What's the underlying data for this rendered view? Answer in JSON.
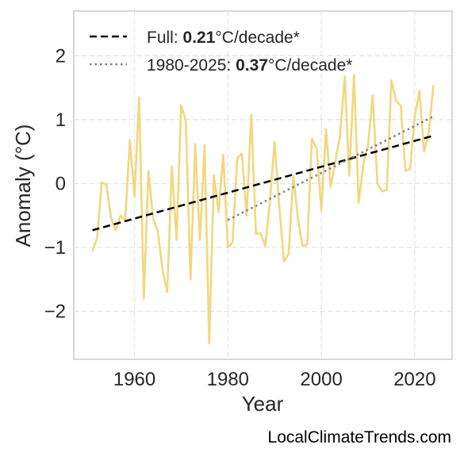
{
  "chart_data": {
    "type": "line",
    "xlabel": "Year",
    "ylabel": "Anomaly (°C)",
    "xlim": [
      1947,
      2028
    ],
    "ylim": [
      -2.75,
      2.7
    ],
    "xticks": [
      1960,
      1980,
      2000,
      2020
    ],
    "yticks": [
      -2,
      -1,
      0,
      1,
      2
    ],
    "ytick_labels": [
      "−2",
      "−1",
      "0",
      "1",
      "2"
    ],
    "grid": true,
    "legend_position": "top-left",
    "series": [
      {
        "x": [
          1951,
          1952,
          1953,
          1954,
          1955,
          1956,
          1957,
          1958,
          1959,
          1960,
          1961,
          1962,
          1963,
          1964,
          1965,
          1966,
          1967,
          1968,
          1969,
          1970,
          1971,
          1972,
          1973,
          1974,
          1975,
          1976,
          1977,
          1978,
          1979,
          1980,
          1981,
          1982,
          1983,
          1984,
          1985,
          1986,
          1987,
          1988,
          1989,
          1990,
          1991,
          1992,
          1993,
          1994,
          1995,
          1996,
          1997,
          1998,
          1999,
          2000,
          2001,
          2002,
          2003,
          2004,
          2005,
          2006,
          2007,
          2008,
          2009,
          2010,
          2011,
          2012,
          2013,
          2014,
          2015,
          2016,
          2017,
          2018,
          2019,
          2020,
          2021,
          2022,
          2023,
          2024
        ],
        "y": [
          -1.05,
          -0.85,
          0.02,
          -0.02,
          -0.55,
          -0.73,
          -0.5,
          -0.58,
          0.68,
          -0.2,
          1.35,
          -1.8,
          0.2,
          -0.55,
          -0.75,
          -1.35,
          -1.7,
          0.27,
          -0.88,
          1.23,
          0.97,
          -1.5,
          0.62,
          -0.88,
          0.6,
          -2.5,
          0.13,
          -0.45,
          0.45,
          -1.0,
          -0.92,
          0.4,
          0.47,
          -0.5,
          1.08,
          -0.78,
          -0.78,
          -0.98,
          -0.28,
          0.65,
          -0.35,
          -1.22,
          -1.1,
          0.12,
          -0.55,
          -0.98,
          -0.95,
          0.7,
          0.55,
          -0.42,
          0.85,
          -0.05,
          0.35,
          0.75,
          1.68,
          0.12,
          1.7,
          -0.3,
          0.3,
          0.6,
          1.38,
          0.0,
          -0.12,
          -0.1,
          1.62,
          1.3,
          1.22,
          0.2,
          0.23,
          1.05,
          1.45,
          0.5,
          0.8,
          1.53
        ],
        "color": "#f2d77e"
      }
    ],
    "trend_lines": [
      {
        "label_prefix": "Full: ",
        "label_value": "0.21",
        "label_suffix": "°C/decade*",
        "style": "dashed",
        "color": "#000000",
        "x": [
          1951,
          2024
        ],
        "y": [
          -0.73,
          0.75
        ]
      },
      {
        "label_prefix": "1980-2025: ",
        "label_value": "0.37",
        "label_suffix": "°C/decade*",
        "style": "dotted",
        "color": "#808080",
        "x": [
          1980,
          2024
        ],
        "y": [
          -0.57,
          1.05
        ]
      }
    ]
  },
  "watermark": "LocalClimateTrends.com"
}
